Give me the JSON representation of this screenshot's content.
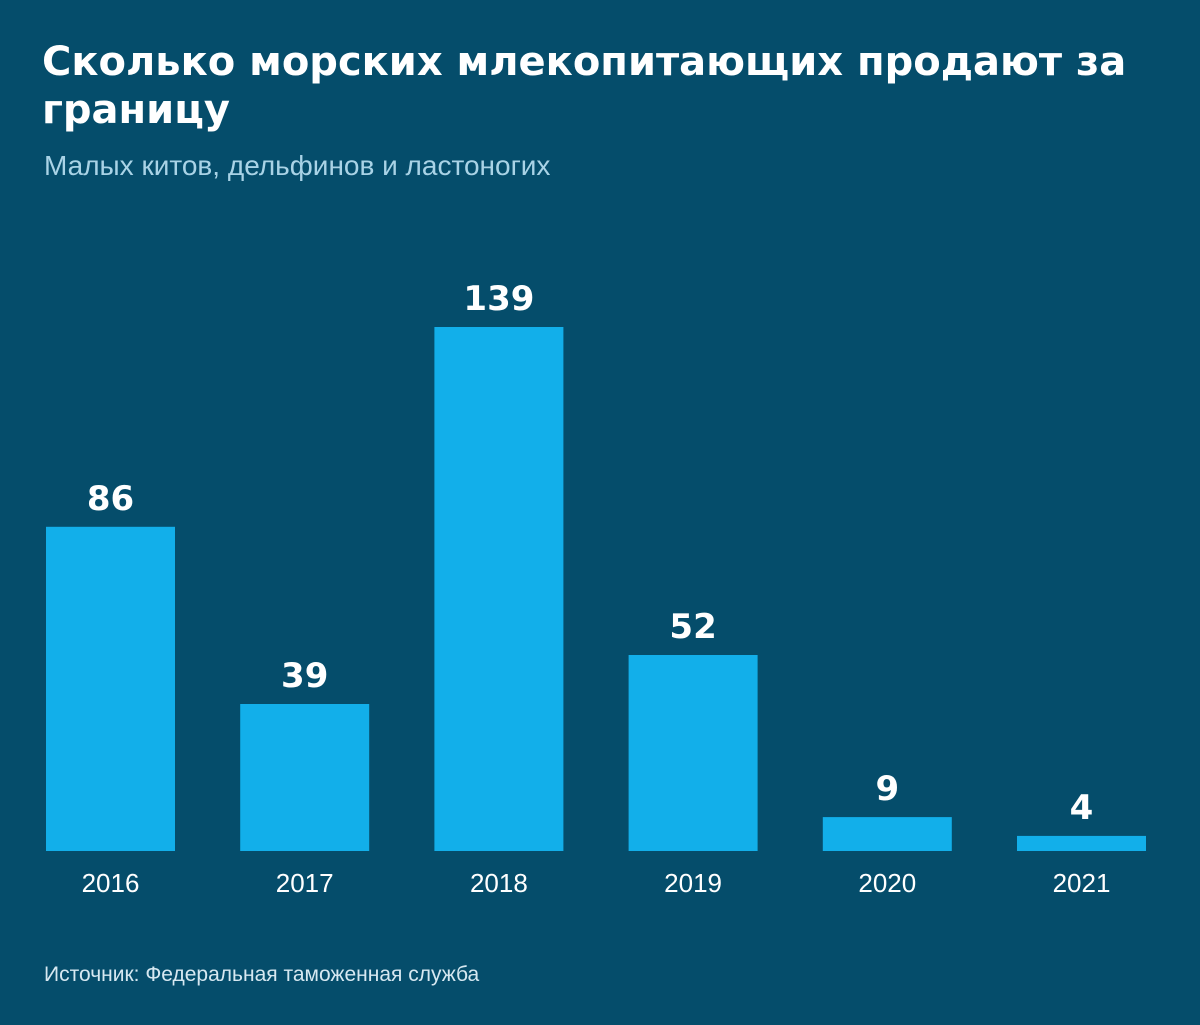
{
  "title": "Сколько морских млекопитающих продают за границу",
  "subtitle": "Малых китов, дельфинов и ластоногих",
  "source": "Источник: Федеральная таможенная служба",
  "colors": {
    "background": "#054d6b",
    "bar": "#12afea",
    "text": "#ffffff",
    "subtitle": "#a9d3e6"
  },
  "chart_data": {
    "type": "bar",
    "categories": [
      "2016",
      "2017",
      "2018",
      "2019",
      "2020",
      "2021"
    ],
    "values": [
      86,
      39,
      139,
      52,
      9,
      4
    ],
    "title": "Сколько морских млекопитающих продают за границу",
    "subtitle": "Малых китов, дельфинов и ластоногих",
    "xlabel": "",
    "ylabel": "",
    "ylim": [
      0,
      139
    ],
    "grid": false,
    "legend": "none",
    "data_labels": true
  }
}
